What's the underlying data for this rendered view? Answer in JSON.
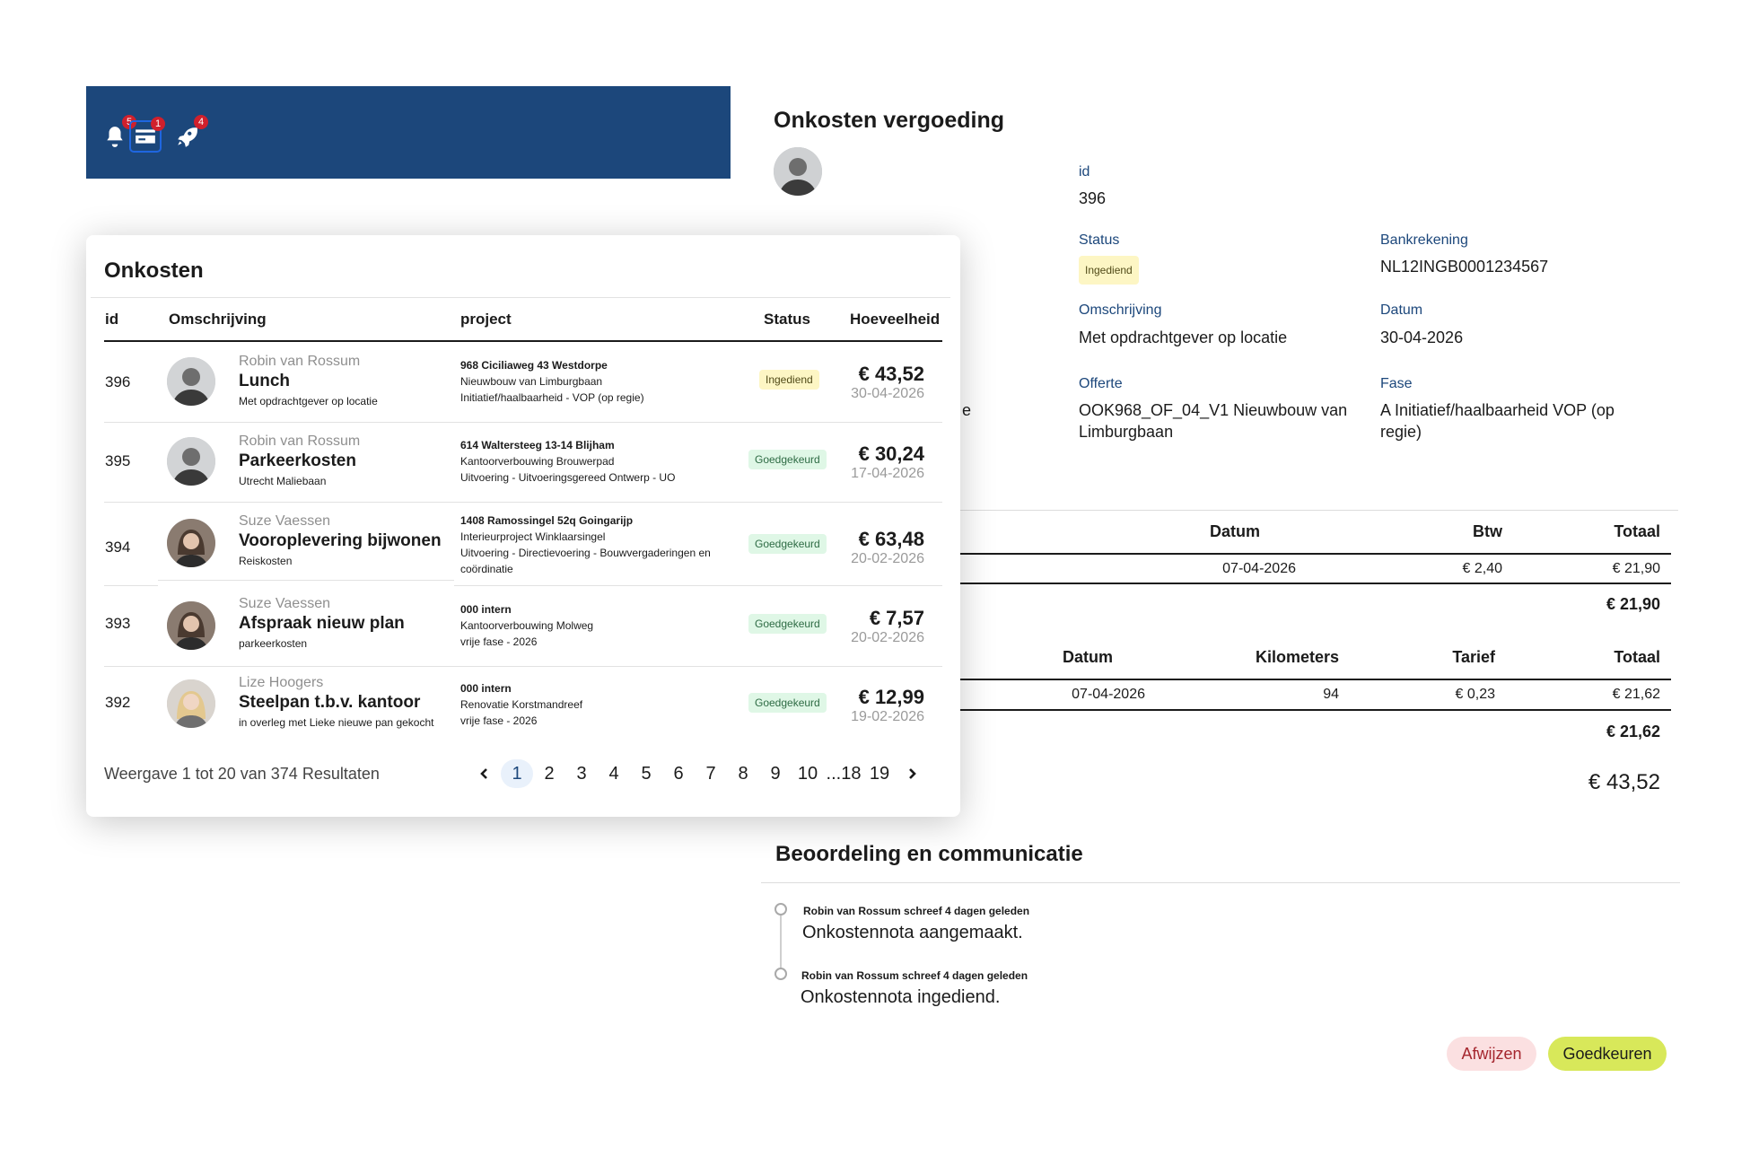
{
  "topbar": {
    "icons": [
      {
        "name": "bell-icon",
        "badge": "5"
      },
      {
        "name": "card-icon",
        "badge": "1"
      },
      {
        "name": "rocket-icon",
        "badge": "4"
      }
    ]
  },
  "detail": {
    "title": "Onkosten vergoeding",
    "id_label": "id",
    "id_value": "396",
    "status_label": "Status",
    "status_value": "Ingediend",
    "bank_label": "Bankrekening",
    "bank_value": "NL12INGB0001234567",
    "omschrijving_label": "Omschrijving",
    "omschrijving_value": "Met opdrachtgever op locatie",
    "datum_label": "Datum",
    "datum_value": "30-04-2026",
    "offerte_label": "Offerte",
    "offerte_value": "OOK968_OF_04_V1 Nieuwbouw van Limburgbaan",
    "fase_label": "Fase",
    "fase_value": "A Initiatief/haalbaarheid VOP (op regie)",
    "peek_char": "e"
  },
  "cost_table": {
    "headers": {
      "datum": "Datum",
      "btw": "Btw",
      "totaal": "Totaal"
    },
    "row": {
      "datum": "07-04-2026",
      "btw": "€ 2,40",
      "totaal": "€ 21,90"
    },
    "total": "€ 21,90"
  },
  "km_table": {
    "headers": {
      "datum": "Datum",
      "km": "Kilometers",
      "tarief": "Tarief",
      "totaal": "Totaal"
    },
    "row": {
      "datum": "07-04-2026",
      "km": "94",
      "tarief": "€ 0,23",
      "totaal": "€ 21,62"
    },
    "total": "€ 21,62"
  },
  "grand_total": "€ 43,52",
  "review": {
    "title": "Beoordeling en communicatie",
    "entries": [
      {
        "meta": "Robin van Rossum schreef 4 dagen geleden",
        "text": "Onkostennota aangemaakt."
      },
      {
        "meta": "Robin van Rossum schreef 4 dagen geleden",
        "text": "Onkostennota ingediend."
      }
    ]
  },
  "actions": {
    "reject": "Afwijzen",
    "approve": "Goedkeuren"
  },
  "list": {
    "title": "Onkosten",
    "columns": {
      "id": "id",
      "omschrijving": "Omschrijving",
      "project": "project",
      "status": "Status",
      "hoeveelheid": "Hoeveelheid"
    },
    "rows": [
      {
        "id": "396",
        "person": "Robin van Rossum",
        "desc": "Lunch",
        "sub": "Met opdrachtgever op locatie",
        "proj1": "968 Ciciliaweg 43 Westdorpe",
        "proj2": "Nieuwbouw van Limburgbaan",
        "proj3": "Initiatief/haalbaarheid - VOP (op regie)",
        "proj4": "",
        "status": "Ingediend",
        "status_color": "yellow",
        "amount": "€ 43,52",
        "date": "30-04-2026"
      },
      {
        "id": "395",
        "person": "Robin van Rossum",
        "desc": "Parkeerkosten",
        "sub": "Utrecht Maliebaan",
        "proj1": "614 Waltersteeg 13-14 Blijham",
        "proj2": "Kantoorverbouwing Brouwerpad",
        "proj3": "Uitvoering - Uitvoeringsgereed Ontwerp - UO",
        "proj4": "",
        "status": "Goedgekeurd",
        "status_color": "green",
        "amount": "€ 30,24",
        "date": "17-04-2026"
      },
      {
        "id": "394",
        "person": "Suze Vaessen",
        "desc": "Vooroplevering bijwonen",
        "sub": "Reiskosten",
        "proj1": "1408 Ramossingel 52q Goingarijp",
        "proj2": "Interieurproject Winklaarsingel",
        "proj3": "Uitvoering - Directievoering - Bouwvergaderingen en",
        "proj4": "coördinatie",
        "status": "Goedgekeurd",
        "status_color": "green",
        "amount": "€ 63,48",
        "date": "20-02-2026"
      },
      {
        "id": "393",
        "person": "Suze Vaessen",
        "desc": "Afspraak nieuw plan",
        "sub": "parkeerkosten",
        "proj1": "000 intern",
        "proj2": "Kantoorverbouwing Molweg",
        "proj3": "vrije fase - 2026",
        "proj4": "",
        "status": "Goedgekeurd",
        "status_color": "green",
        "amount": "€ 7,57",
        "date": "20-02-2026"
      },
      {
        "id": "392",
        "person": "Lize Hoogers",
        "desc": "Steelpan t.b.v. kantoor",
        "sub": "in overleg met Lieke nieuwe pan gekocht",
        "proj1": "000 intern",
        "proj2": "Renovatie Korstmandreef",
        "proj3": "vrije fase - 2026",
        "proj4": "",
        "status": "Goedgekeurd",
        "status_color": "green",
        "amount": "€ 12,99",
        "date": "19-02-2026"
      }
    ],
    "footer": "Weergave 1 tot 20 van 374 Resultaten",
    "pages": [
      "1",
      "2",
      "3",
      "4",
      "5",
      "6",
      "7",
      "8",
      "9",
      "10",
      "...18",
      "19"
    ],
    "current_page": "1"
  }
}
